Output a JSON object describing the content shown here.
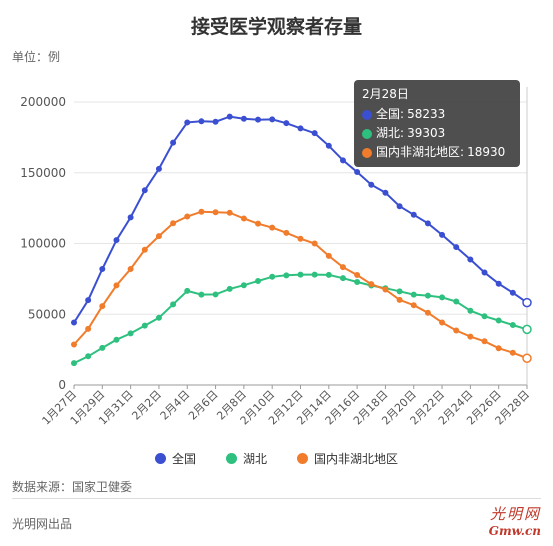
{
  "title": "接受医学观察者存量",
  "unit_label": "单位：例",
  "source_label": "数据来源：国家卫健委",
  "publisher": "光明网出品",
  "logo": {
    "top": "光明网",
    "bottom": "Gmw.cn"
  },
  "tooltip": {
    "date": "2月28日",
    "rows": [
      {
        "name": "全国",
        "value": "58233",
        "color": "#3b4fd1"
      },
      {
        "name": "湖北",
        "value": "39303",
        "color": "#2ec07f"
      },
      {
        "name": "国内非湖北地区",
        "value": "18930",
        "color": "#f07c2c"
      }
    ]
  },
  "chart_data": {
    "type": "line",
    "title": "接受医学观察者存量",
    "ylabel": "单位：例",
    "ylim": [
      0,
      200000
    ],
    "yticks": [
      0,
      50000,
      100000,
      150000,
      200000
    ],
    "grid": true,
    "legend_position": "bottom",
    "categories": [
      "1月27日",
      "1月28日",
      "1月29日",
      "1月30日",
      "1月31日",
      "2月1日",
      "2月2日",
      "2月3日",
      "2月4日",
      "2月5日",
      "2月6日",
      "2月7日",
      "2月8日",
      "2月9日",
      "2月10日",
      "2月11日",
      "2月12日",
      "2月13日",
      "2月14日",
      "2月15日",
      "2月16日",
      "2月17日",
      "2月18日",
      "2月19日",
      "2月20日",
      "2月21日",
      "2月22日",
      "2月23日",
      "2月24日",
      "2月25日",
      "2月26日",
      "2月27日",
      "2月28日"
    ],
    "x_tick_labels": [
      "1月27日",
      "1月29日",
      "1月31日",
      "2月2日",
      "2月4日",
      "2月6日",
      "2月8日",
      "2月10日",
      "2月12日",
      "2月14日",
      "2月16日",
      "2月18日",
      "2月20日",
      "2月22日",
      "2月24日",
      "2月26日",
      "2月28日"
    ],
    "series": [
      {
        "name": "全国",
        "color": "#3b4fd1",
        "values": [
          44132,
          59990,
          81947,
          102427,
          118478,
          137594,
          152700,
          171329,
          185555,
          186354,
          186045,
          189660,
          188183,
          187518,
          187728,
          185037,
          181386,
          177984,
          169039,
          158764,
          150539,
          141552,
          135881,
          126363,
          120302,
          114261,
          106089,
          97481,
          88718,
          79515,
          71572,
          65225,
          58233
        ]
      },
      {
        "name": "湖北",
        "color": "#2ec07f",
        "values": [
          15500,
          20300,
          26200,
          32000,
          36500,
          42000,
          47500,
          57000,
          66500,
          63900,
          64000,
          67900,
          70500,
          73500,
          76500,
          77500,
          78000,
          78000,
          77800,
          75500,
          72800,
          70300,
          68400,
          66200,
          63900,
          63200,
          61900,
          59000,
          52500,
          48600,
          45600,
          42400,
          39303
        ]
      },
      {
        "name": "国内非湖北地区",
        "color": "#f07c2c",
        "values": [
          28632,
          39690,
          55747,
          70427,
          81978,
          95594,
          105200,
          114329,
          119055,
          122454,
          122045,
          121760,
          117683,
          114018,
          111228,
          107537,
          103386,
          99984,
          91239,
          83264,
          77739,
          71252,
          67481,
          60163,
          56402,
          51061,
          44189,
          38481,
          34218,
          30915,
          25972,
          22825,
          18930
        ]
      }
    ]
  }
}
